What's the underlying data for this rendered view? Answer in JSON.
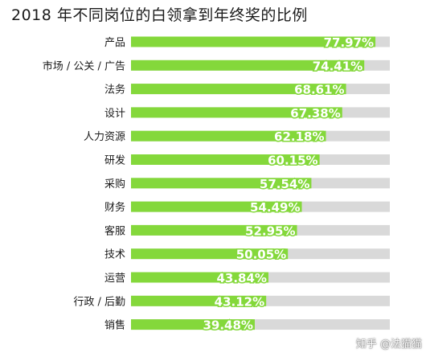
{
  "page_title": "2018 年不同岗位的白领拿到年终奖的比例",
  "watermark": "知乎 @法猫猫",
  "colors": {
    "bar": "#84d83b",
    "track": "#d9d9d9",
    "value_text": "#ffffff",
    "label_text": "#1a1a1a"
  },
  "chart_data": {
    "type": "bar",
    "orientation": "horizontal",
    "title": "2018 年不同岗位的白领拿到年终奖的比例",
    "categories": [
      "产品",
      "市场 / 公关 / 广告",
      "法务",
      "设计",
      "人力资源",
      "研发",
      "采购",
      "财务",
      "客服",
      "技术",
      "运营",
      "行政 / 后勤",
      "销售"
    ],
    "values": [
      77.97,
      74.41,
      68.61,
      67.38,
      62.18,
      60.15,
      57.54,
      54.49,
      52.95,
      50.05,
      43.84,
      43.12,
      39.48
    ],
    "labels": [
      "77.97%",
      "74.41%",
      "68.61%",
      "67.38%",
      "62.18%",
      "60.15%",
      "57.54%",
      "54.49%",
      "52.95%",
      "50.05%",
      "43.84%",
      "43.12%",
      "39.48%"
    ],
    "xlim": [
      0,
      100
    ],
    "grid": false,
    "legend": "none"
  }
}
